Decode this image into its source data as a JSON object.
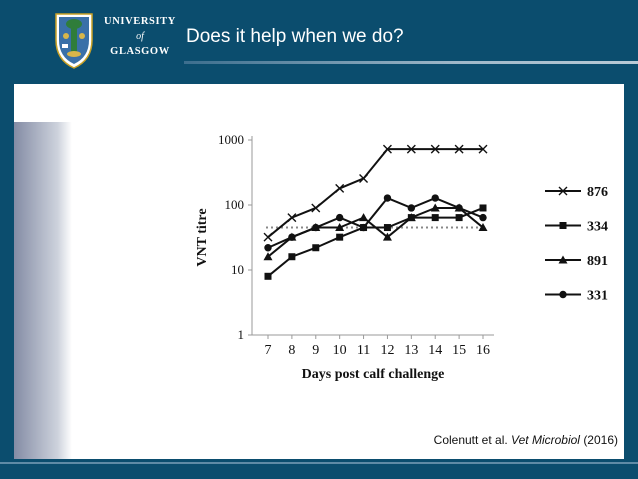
{
  "header": {
    "title": "Does it help when we do?",
    "logo": {
      "line1": "UNIVERSITY",
      "line2": "of",
      "line3": "GLASGOW",
      "crest_icon": "university-crest-icon"
    }
  },
  "citation": {
    "authors": "Colenutt et al.",
    "journal": "Vet Microbiol",
    "year": "(2016)"
  },
  "colors": {
    "background": "#0b4d6e",
    "panel": "#ffffff",
    "series": "#111111",
    "threshold": "#888888"
  },
  "chart_data": {
    "type": "line",
    "title": "",
    "xlabel": "Days post calf challenge",
    "ylabel": "VNT titre",
    "yscale": "log",
    "x": [
      7,
      8,
      9,
      10,
      11,
      12,
      13,
      14,
      15,
      16
    ],
    "ylim": [
      1,
      1000
    ],
    "yticks": [
      1,
      10,
      100,
      1000
    ],
    "threshold_line": {
      "y": 45,
      "style": "dotted"
    },
    "legend_position": "right",
    "series": [
      {
        "name": "876",
        "marker": "x",
        "values": [
          32,
          64,
          90,
          180,
          256,
          724,
          724,
          724,
          724,
          724
        ]
      },
      {
        "name": "334",
        "marker": "square",
        "values": [
          8,
          16,
          22,
          32,
          45,
          45,
          64,
          64,
          64,
          90
        ]
      },
      {
        "name": "891",
        "marker": "triangle",
        "values": [
          16,
          32,
          45,
          45,
          64,
          32,
          64,
          90,
          90,
          45
        ]
      },
      {
        "name": "331",
        "marker": "circle",
        "values": [
          22,
          32,
          45,
          64,
          45,
          128,
          90,
          128,
          90,
          64
        ]
      }
    ]
  }
}
